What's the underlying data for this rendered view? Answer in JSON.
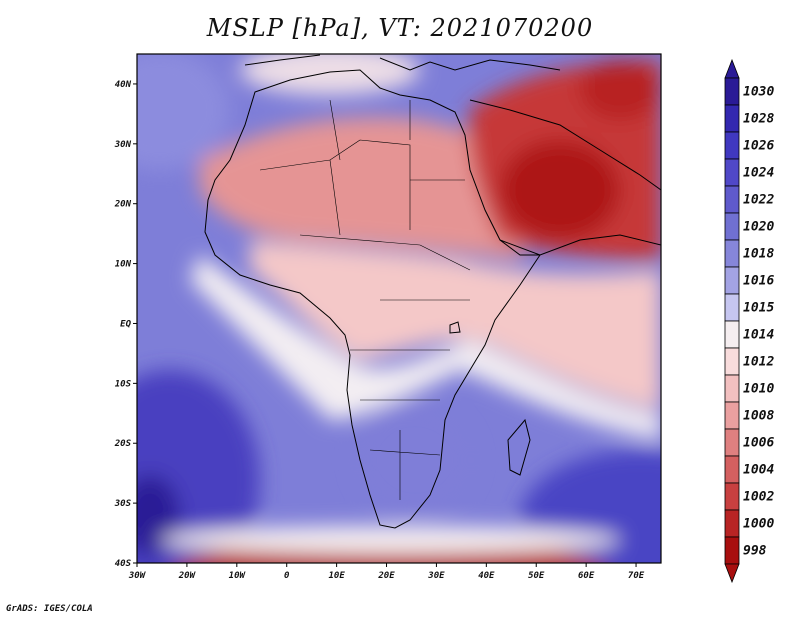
{
  "title": "MSLP [hPa], VT: 2021070200",
  "credit": "GrADS: IGES/COLA",
  "map": {
    "lon_range": [
      -30,
      75
    ],
    "lat_range": [
      -40,
      45
    ],
    "lon_ticks": [
      {
        "value": -30,
        "label": "30W"
      },
      {
        "value": -20,
        "label": "20W"
      },
      {
        "value": -10,
        "label": "10W"
      },
      {
        "value": 0,
        "label": "0"
      },
      {
        "value": 10,
        "label": "10E"
      },
      {
        "value": 20,
        "label": "20E"
      },
      {
        "value": 30,
        "label": "30E"
      },
      {
        "value": 40,
        "label": "40E"
      },
      {
        "value": 50,
        "label": "50E"
      },
      {
        "value": 60,
        "label": "60E"
      },
      {
        "value": 70,
        "label": "70E"
      }
    ],
    "lat_ticks": [
      {
        "value": 40,
        "label": "40N"
      },
      {
        "value": 30,
        "label": "30N"
      },
      {
        "value": 20,
        "label": "20N"
      },
      {
        "value": 10,
        "label": "10N"
      },
      {
        "value": 0,
        "label": "EQ"
      },
      {
        "value": -10,
        "label": "10S"
      },
      {
        "value": -20,
        "label": "20S"
      },
      {
        "value": -30,
        "label": "30S"
      },
      {
        "value": -40,
        "label": "40S"
      }
    ]
  },
  "colorbar": {
    "levels": [
      "1030",
      "1028",
      "1026",
      "1024",
      "1022",
      "1020",
      "1018",
      "1016",
      "1015",
      "1014",
      "1012",
      "1010",
      "1008",
      "1006",
      "1004",
      "1002",
      "1000",
      "998"
    ],
    "colors": [
      "#2a1a96",
      "#3328b0",
      "#4038c0",
      "#5048c8",
      "#5f5acc",
      "#7070d2",
      "#8686da",
      "#a3a3e4",
      "#c6c6f0",
      "#f5eef0",
      "#f8dcdc",
      "#f2c0c0",
      "#eaa0a0",
      "#df8080",
      "#d46060",
      "#c84040",
      "#b82424",
      "#a80f0f"
    ]
  }
}
